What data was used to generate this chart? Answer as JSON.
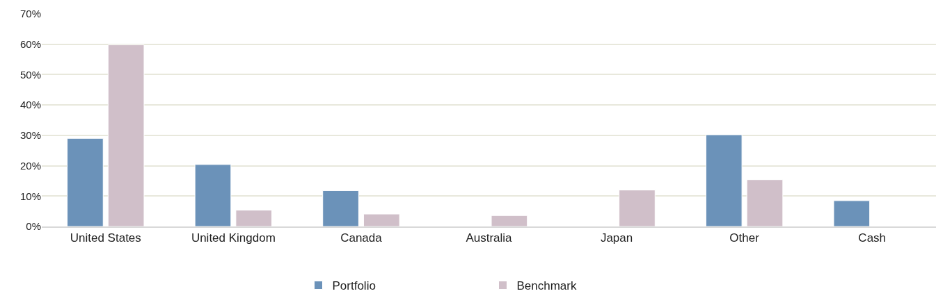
{
  "chart_data": {
    "type": "bar",
    "categories": [
      "United States",
      "United Kingdom",
      "Canada",
      "Australia",
      "Japan",
      "Other",
      "Cash"
    ],
    "series": [
      {
        "name": "Portfolio",
        "color": "#6b92b9",
        "values": [
          29.0,
          20.4,
          11.8,
          null,
          null,
          30.2,
          8.5
        ]
      },
      {
        "name": "Benchmark",
        "color": "#d0bfc9",
        "values": [
          59.8,
          5.4,
          4.1,
          3.6,
          12.0,
          15.4,
          null
        ]
      }
    ],
    "ylim": [
      0,
      70
    ],
    "yticks": [
      {
        "value": 0,
        "label": "0%"
      },
      {
        "value": 10,
        "label": "10%"
      },
      {
        "value": 20,
        "label": "20%"
      },
      {
        "value": 30,
        "label": "30%"
      },
      {
        "value": 40,
        "label": "40%"
      },
      {
        "value": 50,
        "label": "50%"
      },
      {
        "value": 60,
        "label": "60%"
      },
      {
        "value": 70,
        "label": "70%"
      }
    ],
    "grid": "y",
    "legend": "bottom"
  }
}
